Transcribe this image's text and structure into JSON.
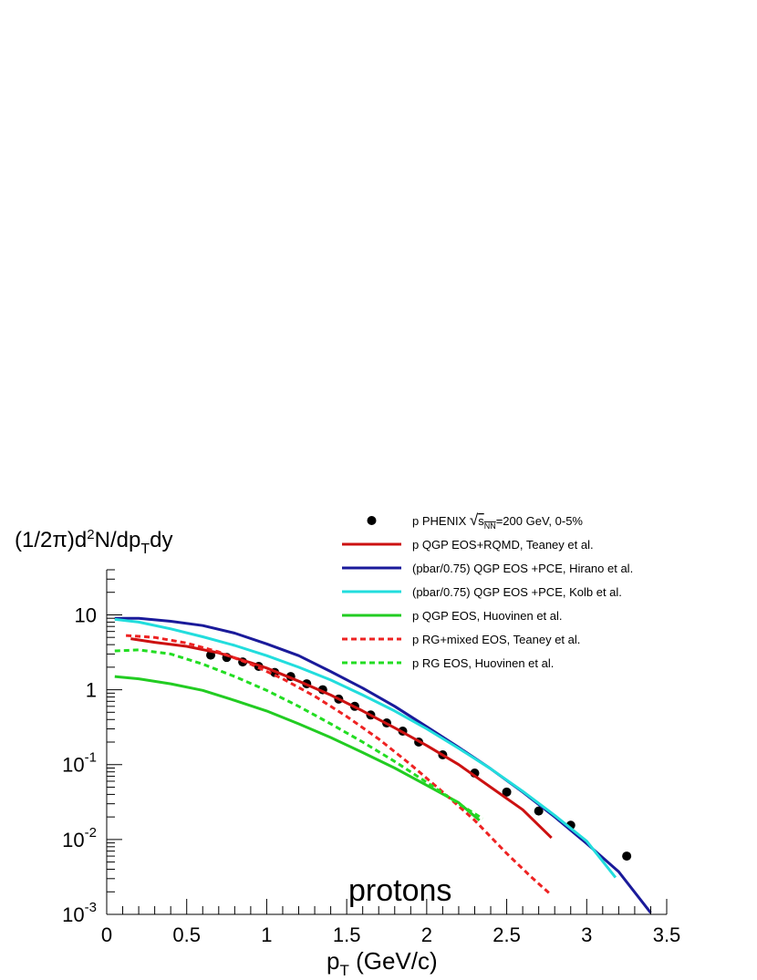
{
  "chart_data": {
    "type": "line",
    "y_axis_label": "(1/2π)d²N/dp_Tdy",
    "x_axis_label": "p_T (GeV/c)",
    "annotation": "protons",
    "x_range": [
      0,
      3.5
    ],
    "y_range": [
      0.001,
      40
    ],
    "y_scale": "log",
    "grid": false,
    "legend_position": "top-right",
    "x_ticks": [
      "0",
      "0.5",
      "1",
      "1.5",
      "2",
      "2.5",
      "3",
      "3.5"
    ],
    "y_ticks": [
      {
        "value": 10,
        "label": "10",
        "exponent": ""
      },
      {
        "value": 1,
        "label": "1",
        "exponent": ""
      },
      {
        "value": 0.1,
        "label": "10",
        "exponent": "-1"
      },
      {
        "value": 0.01,
        "label": "10",
        "exponent": "-2"
      },
      {
        "value": 0.001,
        "label": "10",
        "exponent": "-3"
      }
    ],
    "series": [
      {
        "name": "p PHENIX √s_NN=200 GeV, 0-5%",
        "legend": {
          "prefix": "p PHENIX ",
          "radicand": "s",
          "sub": "NN",
          "suffix": "=200 GeV, 0-5%"
        },
        "style": "marker",
        "color": "#000000",
        "x": [
          0.65,
          0.75,
          0.85,
          0.95,
          1.05,
          1.15,
          1.25,
          1.35,
          1.45,
          1.55,
          1.65,
          1.75,
          1.85,
          1.95,
          2.1,
          2.3,
          2.5,
          2.7,
          2.9,
          3.25
        ],
        "y": [
          2.9,
          2.7,
          2.35,
          2.05,
          1.7,
          1.5,
          1.2,
          1.0,
          0.75,
          0.6,
          0.46,
          0.36,
          0.28,
          0.2,
          0.135,
          0.077,
          0.043,
          0.024,
          0.0155,
          0.006
        ]
      },
      {
        "name": "p  QGP EOS+RQMD, Teaney et al.",
        "style": "solid",
        "color": "#cc1111",
        "x": [
          0.15,
          0.3,
          0.5,
          0.7,
          0.9,
          1.0,
          1.2,
          1.4,
          1.6,
          1.8,
          2.0,
          2.2,
          2.4,
          2.6,
          2.78
        ],
        "y": [
          4.8,
          4.3,
          3.8,
          3.1,
          2.3,
          1.95,
          1.3,
          0.85,
          0.52,
          0.31,
          0.18,
          0.1,
          0.05,
          0.025,
          0.0105
        ]
      },
      {
        "name": "(pbar/0.75) QGP EOS +PCE, Hirano et al.",
        "style": "solid",
        "color": "#1a1a9a",
        "x": [
          0.05,
          0.2,
          0.4,
          0.6,
          0.8,
          1.0,
          1.2,
          1.4,
          1.6,
          1.8,
          2.0,
          2.2,
          2.4,
          2.6,
          2.8,
          3.0,
          3.2,
          3.4
        ],
        "y": [
          9.0,
          9.0,
          8.2,
          7.2,
          5.7,
          4.1,
          2.85,
          1.75,
          1.05,
          0.6,
          0.32,
          0.17,
          0.088,
          0.043,
          0.02,
          0.0088,
          0.0037,
          0.00105
        ]
      },
      {
        "name": "(pbar/0.75) QGP EOS +PCE, Kolb et al.",
        "style": "solid",
        "color": "#22dddd",
        "x": [
          0.05,
          0.2,
          0.4,
          0.6,
          0.8,
          1.0,
          1.2,
          1.4,
          1.6,
          1.8,
          2.0,
          2.2,
          2.4,
          2.6,
          2.8,
          3.0,
          3.18
        ],
        "y": [
          8.7,
          8.0,
          6.5,
          5.1,
          3.9,
          2.85,
          2.0,
          1.35,
          0.85,
          0.52,
          0.3,
          0.165,
          0.088,
          0.044,
          0.021,
          0.0095,
          0.0031
        ]
      },
      {
        "name": "p QGP EOS, Huovinen et al.",
        "style": "solid",
        "color": "#22cc22",
        "x": [
          0.05,
          0.2,
          0.4,
          0.6,
          0.8,
          1.0,
          1.2,
          1.4,
          1.6,
          1.8,
          2.0,
          2.2,
          2.33
        ],
        "y": [
          1.5,
          1.4,
          1.2,
          0.98,
          0.72,
          0.52,
          0.35,
          0.23,
          0.145,
          0.09,
          0.053,
          0.031,
          0.018
        ]
      },
      {
        "name": "p RG+mixed EOS, Teaney et al.",
        "style": "dashed",
        "color": "#ee2222",
        "x": [
          0.12,
          0.3,
          0.5,
          0.7,
          0.9,
          1.1,
          1.3,
          1.5,
          1.7,
          1.9,
          2.1,
          2.3,
          2.5,
          2.65,
          2.78
        ],
        "y": [
          5.3,
          5.0,
          4.2,
          3.2,
          2.2,
          1.4,
          0.82,
          0.44,
          0.22,
          0.1,
          0.043,
          0.018,
          0.0065,
          0.0032,
          0.0018
        ]
      },
      {
        "name": "p RG EOS, Huovinen et al.",
        "style": "dashed",
        "color": "#22dd22",
        "x": [
          0.05,
          0.2,
          0.4,
          0.6,
          0.8,
          1.0,
          1.2,
          1.4,
          1.6,
          1.8,
          2.0,
          2.2,
          2.35
        ],
        "y": [
          3.3,
          3.4,
          3.0,
          2.2,
          1.5,
          0.98,
          0.6,
          0.35,
          0.2,
          0.11,
          0.058,
          0.03,
          0.019
        ]
      }
    ]
  }
}
